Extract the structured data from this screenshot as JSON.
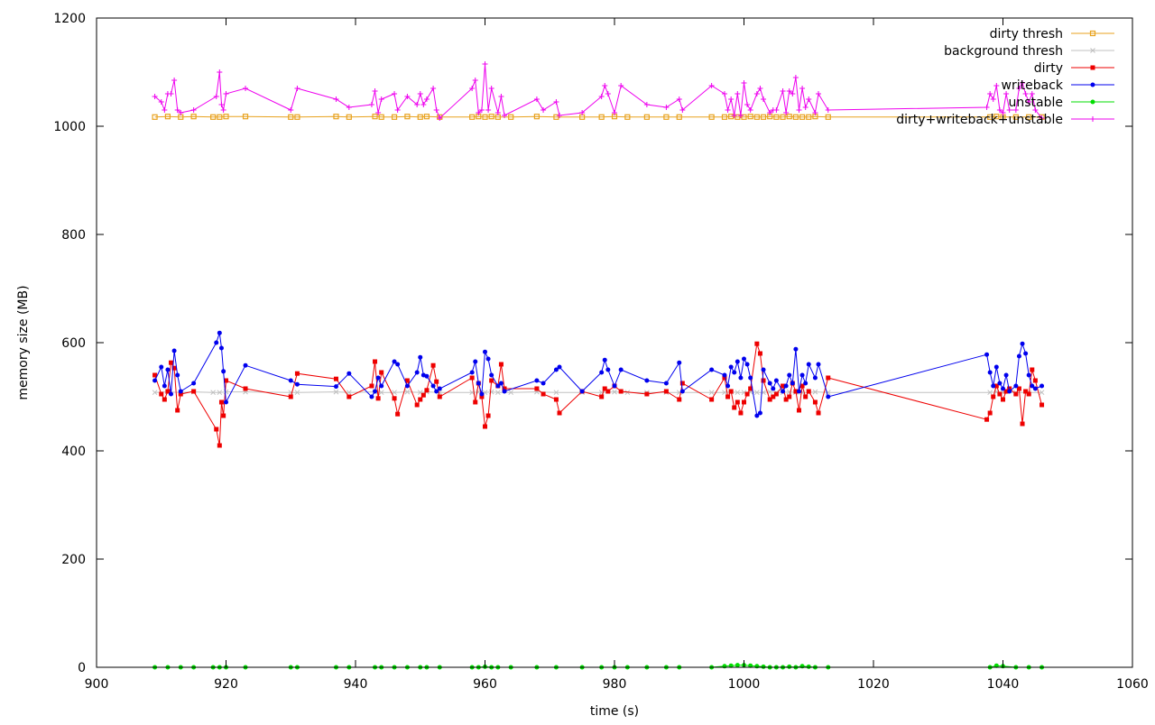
{
  "chart_data": {
    "type": "line",
    "title": "",
    "xlabel": "time (s)",
    "ylabel": "memory size (MB)",
    "xlim": [
      900,
      1060
    ],
    "ylim": [
      0,
      1200
    ],
    "xticks": [
      900,
      920,
      940,
      960,
      980,
      1000,
      1020,
      1040,
      1060
    ],
    "yticks": [
      0,
      200,
      400,
      600,
      800,
      1000,
      1200
    ],
    "grid": false,
    "legend_position": "top-right",
    "series": [
      {
        "name": "dirty thresh",
        "color": "#e8a21e",
        "marker": "square-open",
        "x": [
          909,
          911,
          913,
          915,
          918,
          919,
          920,
          923,
          930,
          931,
          937,
          939,
          943,
          944,
          946,
          948,
          950,
          951,
          953,
          958,
          959,
          960,
          961,
          962,
          964,
          968,
          971,
          975,
          978,
          980,
          982,
          985,
          988,
          990,
          995,
          997,
          998,
          999,
          1000,
          1001,
          1002,
          1003,
          1004,
          1005,
          1006,
          1007,
          1008,
          1009,
          1010,
          1011,
          1013,
          1038,
          1039,
          1040,
          1042,
          1044,
          1046
        ],
        "values": [
          1017,
          1018,
          1017,
          1018,
          1017,
          1017,
          1018,
          1018,
          1017,
          1017,
          1018,
          1017,
          1018,
          1017,
          1017,
          1018,
          1017,
          1018,
          1017,
          1017,
          1018,
          1017,
          1018,
          1017,
          1017,
          1018,
          1017,
          1017,
          1017,
          1018,
          1017,
          1017,
          1017,
          1017,
          1017,
          1017,
          1018,
          1017,
          1017,
          1018,
          1017,
          1017,
          1018,
          1017,
          1017,
          1018,
          1017,
          1017,
          1017,
          1018,
          1017,
          1017,
          1018,
          1017,
          1017,
          1017,
          1017
        ]
      },
      {
        "name": "background thresh",
        "color": "#c0c0c0",
        "marker": "cross",
        "x": [
          909,
          911,
          913,
          915,
          918,
          919,
          920,
          923,
          930,
          931,
          937,
          939,
          943,
          944,
          946,
          948,
          950,
          951,
          953,
          958,
          959,
          960,
          961,
          962,
          964,
          968,
          971,
          975,
          978,
          980,
          982,
          985,
          988,
          990,
          995,
          997,
          998,
          999,
          1000,
          1001,
          1002,
          1003,
          1004,
          1005,
          1006,
          1007,
          1008,
          1009,
          1010,
          1011,
          1013,
          1038,
          1039,
          1040,
          1042,
          1044,
          1046
        ],
        "values": [
          508,
          509,
          508,
          509,
          508,
          508,
          509,
          509,
          508,
          508,
          509,
          508,
          509,
          508,
          508,
          509,
          508,
          509,
          508,
          508,
          509,
          508,
          509,
          508,
          508,
          509,
          508,
          508,
          508,
          509,
          508,
          508,
          508,
          508,
          508,
          508,
          509,
          508,
          508,
          509,
          508,
          508,
          509,
          508,
          508,
          509,
          508,
          508,
          508,
          509,
          508,
          508,
          509,
          508,
          508,
          508,
          508
        ]
      },
      {
        "name": "dirty",
        "color": "#ee0000",
        "marker": "square",
        "x": [
          909,
          910,
          910.5,
          911,
          911.5,
          912,
          912.5,
          913,
          915,
          918.5,
          919,
          919.3,
          919.6,
          920,
          923,
          930,
          931,
          937,
          939,
          942.5,
          943,
          943.5,
          944,
          946,
          946.5,
          948,
          949.5,
          950,
          950.5,
          951,
          952,
          952.5,
          953,
          958,
          958.5,
          959,
          959.5,
          960,
          960.5,
          961,
          962,
          962.5,
          963,
          968,
          969,
          971,
          971.5,
          975,
          978,
          978.5,
          979,
          980,
          981,
          985,
          988,
          990,
          990.5,
          995,
          997,
          997.5,
          998,
          998.5,
          999,
          999.5,
          1000,
          1000.5,
          1001,
          1002,
          1002.5,
          1003,
          1004,
          1004.5,
          1005,
          1006,
          1006.5,
          1007,
          1007.5,
          1008,
          1008.5,
          1009,
          1009.5,
          1010,
          1011,
          1011.5,
          1013,
          1037.5,
          1038,
          1038.5,
          1039,
          1039.5,
          1040,
          1040.5,
          1041,
          1042,
          1042.5,
          1043,
          1043.5,
          1044,
          1044.5,
          1045,
          1046
        ],
        "values": [
          540,
          505,
          495,
          510,
          563,
          553,
          475,
          505,
          510,
          440,
          410,
          490,
          465,
          530,
          515,
          500,
          543,
          533,
          500,
          520,
          565,
          497,
          545,
          497,
          468,
          530,
          485,
          495,
          503,
          512,
          558,
          528,
          500,
          535,
          490,
          525,
          500,
          445,
          465,
          530,
          520,
          560,
          515,
          515,
          505,
          495,
          470,
          510,
          500,
          515,
          510,
          520,
          510,
          505,
          510,
          495,
          525,
          495,
          535,
          500,
          510,
          480,
          490,
          470,
          490,
          505,
          515,
          598,
          580,
          530,
          495,
          500,
          505,
          520,
          495,
          500,
          525,
          510,
          475,
          520,
          500,
          510,
          490,
          470,
          535,
          458,
          470,
          500,
          520,
          505,
          495,
          510,
          515,
          505,
          515,
          450,
          510,
          505,
          550,
          530,
          485
        ]
      },
      {
        "name": "writeback",
        "color": "#0000ee",
        "marker": "circle",
        "x": [
          909,
          910,
          910.5,
          911,
          911.5,
          912,
          912.5,
          913,
          915,
          918.5,
          919,
          919.3,
          919.6,
          920,
          923,
          930,
          931,
          937,
          939,
          942.5,
          943,
          943.5,
          944,
          946,
          946.5,
          948,
          949.5,
          950,
          950.5,
          951,
          952,
          952.5,
          953,
          958,
          958.5,
          959,
          959.5,
          960,
          960.5,
          961,
          962,
          962.5,
          963,
          968,
          969,
          971,
          971.5,
          975,
          978,
          978.5,
          979,
          980,
          981,
          985,
          988,
          990,
          990.5,
          995,
          997,
          997.5,
          998,
          998.5,
          999,
          999.5,
          1000,
          1000.5,
          1001,
          1002,
          1002.5,
          1003,
          1004,
          1004.5,
          1005,
          1006,
          1006.5,
          1007,
          1007.5,
          1008,
          1008.5,
          1009,
          1009.5,
          1010,
          1011,
          1011.5,
          1013,
          1037.5,
          1038,
          1038.5,
          1039,
          1039.5,
          1040,
          1040.5,
          1041,
          1042,
          1042.5,
          1043,
          1043.5,
          1044,
          1044.5,
          1045,
          1046
        ],
        "values": [
          530,
          555,
          520,
          550,
          505,
          585,
          540,
          510,
          525,
          600,
          618,
          590,
          547,
          490,
          558,
          530,
          523,
          519,
          543,
          500,
          510,
          535,
          520,
          565,
          560,
          520,
          545,
          573,
          540,
          538,
          520,
          510,
          515,
          545,
          565,
          525,
          505,
          583,
          570,
          540,
          520,
          525,
          510,
          530,
          525,
          550,
          555,
          510,
          545,
          568,
          550,
          520,
          550,
          530,
          525,
          563,
          510,
          550,
          540,
          520,
          555,
          545,
          565,
          535,
          570,
          560,
          535,
          465,
          470,
          550,
          525,
          515,
          530,
          510,
          520,
          540,
          525,
          588,
          510,
          540,
          525,
          560,
          535,
          560,
          500,
          578,
          545,
          520,
          555,
          525,
          515,
          540,
          510,
          520,
          575,
          598,
          580,
          540,
          520,
          515,
          520
        ]
      },
      {
        "name": "unstable",
        "color": "#00dd00",
        "marker": "circle",
        "x": [
          909,
          911,
          913,
          915,
          918,
          919,
          920,
          923,
          930,
          931,
          937,
          939,
          943,
          944,
          946,
          948,
          950,
          951,
          953,
          958,
          959,
          960,
          961,
          962,
          964,
          968,
          971,
          975,
          978,
          980,
          982,
          985,
          988,
          990,
          995,
          997,
          998,
          999,
          1000,
          1001,
          1002,
          1003,
          1004,
          1005,
          1006,
          1007,
          1008,
          1009,
          1010,
          1011,
          1013,
          1038,
          1039,
          1040,
          1042,
          1044,
          1046
        ],
        "values": [
          0,
          0,
          0,
          0,
          0,
          0,
          0,
          0,
          0,
          0,
          0,
          0,
          0,
          0,
          0,
          0,
          0,
          0,
          0,
          0,
          0,
          1,
          0,
          0,
          0,
          0,
          0,
          0,
          0,
          0,
          0,
          0,
          0,
          0,
          0,
          2,
          3,
          4,
          4,
          3,
          2,
          1,
          0,
          0,
          0,
          1,
          0,
          2,
          1,
          0,
          0,
          0,
          3,
          2,
          0,
          0,
          0
        ]
      },
      {
        "name": "dirty+writeback+unstable",
        "color": "#ee00ee",
        "marker": "plus",
        "x": [
          909,
          910,
          910.5,
          911,
          911.5,
          912,
          912.5,
          913,
          915,
          918.5,
          919,
          919.3,
          919.6,
          920,
          923,
          930,
          931,
          937,
          939,
          942.5,
          943,
          943.5,
          944,
          946,
          946.5,
          948,
          949.5,
          950,
          950.5,
          951,
          952,
          952.5,
          953,
          958,
          958.5,
          959,
          959.5,
          960,
          960.5,
          961,
          962,
          962.5,
          963,
          968,
          969,
          971,
          971.5,
          975,
          978,
          978.5,
          979,
          980,
          981,
          985,
          988,
          990,
          990.5,
          995,
          997,
          997.5,
          998,
          998.5,
          999,
          999.5,
          1000,
          1000.5,
          1001,
          1002,
          1002.5,
          1003,
          1004,
          1004.5,
          1005,
          1006,
          1006.5,
          1007,
          1007.5,
          1008,
          1008.5,
          1009,
          1009.5,
          1010,
          1011,
          1011.5,
          1013,
          1037.5,
          1038,
          1038.5,
          1039,
          1039.5,
          1040,
          1040.5,
          1041,
          1042,
          1042.5,
          1043,
          1043.5,
          1044,
          1044.5,
          1045,
          1046
        ],
        "values": [
          1055,
          1045,
          1030,
          1060,
          1060,
          1085,
          1030,
          1025,
          1030,
          1055,
          1100,
          1040,
          1030,
          1060,
          1070,
          1030,
          1070,
          1050,
          1035,
          1040,
          1065,
          1025,
          1050,
          1060,
          1030,
          1055,
          1040,
          1060,
          1040,
          1050,
          1070,
          1030,
          1015,
          1070,
          1085,
          1025,
          1030,
          1115,
          1030,
          1070,
          1025,
          1055,
          1020,
          1050,
          1030,
          1045,
          1020,
          1025,
          1055,
          1075,
          1060,
          1025,
          1075,
          1040,
          1035,
          1050,
          1030,
          1075,
          1060,
          1030,
          1050,
          1020,
          1060,
          1020,
          1080,
          1040,
          1030,
          1060,
          1070,
          1050,
          1025,
          1030,
          1030,
          1065,
          1025,
          1065,
          1060,
          1090,
          1030,
          1070,
          1035,
          1050,
          1025,
          1060,
          1030,
          1035,
          1060,
          1050,
          1075,
          1030,
          1025,
          1060,
          1030,
          1030,
          1070,
          1080,
          1060,
          1045,
          1060,
          1030,
          1015
        ]
      }
    ]
  }
}
